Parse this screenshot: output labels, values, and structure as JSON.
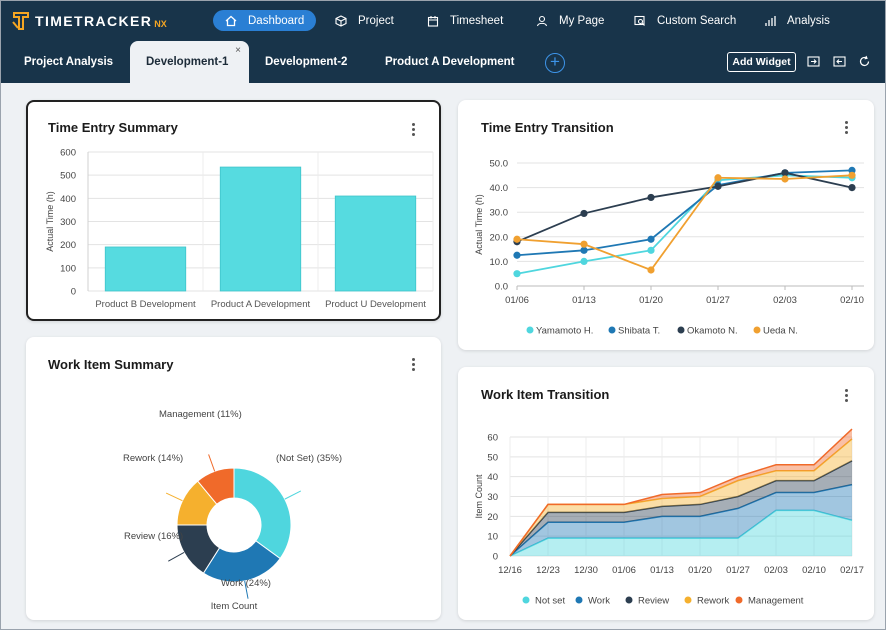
{
  "app": {
    "logo_text": "TIMETRACKER",
    "logo_suffix": "NX"
  },
  "nav": {
    "items": [
      {
        "label": "Dashboard",
        "icon": "home-icon",
        "active": true
      },
      {
        "label": "Project",
        "icon": "cube-icon",
        "active": false
      },
      {
        "label": "Timesheet",
        "icon": "calendar-icon",
        "active": false
      },
      {
        "label": "My Page",
        "icon": "user-icon",
        "active": false
      },
      {
        "label": "Custom Search",
        "icon": "search-list-icon",
        "active": false
      },
      {
        "label": "Analysis",
        "icon": "bar-chart-icon",
        "active": false
      }
    ]
  },
  "tabs": {
    "items": [
      {
        "label": "Project Analysis",
        "active": false
      },
      {
        "label": "Development-1",
        "active": true
      },
      {
        "label": "Development-2",
        "active": false
      },
      {
        "label": "Product A Development",
        "active": false
      }
    ],
    "close_glyph": "×",
    "add_glyph": "+",
    "add_widget_label": "Add Widget"
  },
  "colors": {
    "nav_bg": "#18344a",
    "accent": "#2a7fd4",
    "bar": "#56dbe0",
    "bar_stroke": "#3fc4ca"
  },
  "widgets": {
    "time_entry_summary": {
      "title": "Time Entry Summary"
    },
    "time_entry_transition": {
      "title": "Time Entry Transition"
    },
    "work_item_summary": {
      "title": "Work Item Summary"
    },
    "work_item_transition": {
      "title": "Work Item Transition"
    }
  },
  "chart_data": [
    {
      "type": "bar",
      "title": "Time Entry Summary",
      "ylabel": "Actual Time (h)",
      "categories": [
        "Product B Development",
        "Product A Development",
        "Product U Development"
      ],
      "values": [
        190,
        535,
        410
      ],
      "ylim": [
        0,
        600
      ],
      "yticks": [
        0,
        100,
        200,
        300,
        400,
        500,
        600
      ],
      "grid": true,
      "color": "#56dbe0"
    },
    {
      "type": "line",
      "title": "Time Entry Transition",
      "ylabel": "Actual Time (h)",
      "x": [
        "01/06",
        "01/13",
        "01/20",
        "01/27",
        "02/03",
        "02/10"
      ],
      "ylim": [
        0,
        50
      ],
      "yticks": [
        "0.0",
        "10.0",
        "20.0",
        "30.0",
        "40.0",
        "50.0"
      ],
      "legend": "bottom",
      "series": [
        {
          "name": "Yamamoto H.",
          "color": "#4fd6de",
          "values": [
            5,
            10,
            14.5,
            43,
            45,
            44
          ]
        },
        {
          "name": "Shibata T.",
          "color": "#1f78b4",
          "values": [
            12.5,
            14.5,
            19,
            41,
            46,
            47
          ]
        },
        {
          "name": "Okamoto N.",
          "color": "#2c3e50",
          "values": [
            18,
            29.5,
            36,
            40.5,
            46,
            40
          ]
        },
        {
          "name": "Ueda N.",
          "color": "#f0a030",
          "values": [
            19,
            17,
            6.5,
            44,
            43.5,
            45
          ]
        }
      ]
    },
    {
      "type": "pie",
      "title": "Work Item Summary",
      "legend_title": "Item Count",
      "slices": [
        {
          "label": "(Not Set) (35%)",
          "value": 35,
          "color": "#4fd6de"
        },
        {
          "label": "Work (24%)",
          "value": 24,
          "color": "#1f78b4"
        },
        {
          "label": "Review (16%)",
          "value": 16,
          "color": "#2c3e50"
        },
        {
          "label": "Rework (14%)",
          "value": 14,
          "color": "#f5b02e"
        },
        {
          "label": "Management (11%)",
          "value": 11,
          "color": "#f06a2a"
        }
      ]
    },
    {
      "type": "area",
      "title": "Work Item Transition",
      "ylabel": "Item Count",
      "x": [
        "12/16",
        "12/23",
        "12/30",
        "01/06",
        "01/13",
        "01/20",
        "01/27",
        "02/03",
        "02/10",
        "02/17"
      ],
      "ylim": [
        0,
        60
      ],
      "yticks": [
        0,
        10,
        20,
        30,
        40,
        50,
        60
      ],
      "legend": "bottom",
      "series": [
        {
          "name": "Not set",
          "color": "#4fd6de",
          "values": [
            0,
            9,
            9,
            9,
            9,
            9,
            9,
            23,
            23,
            18
          ]
        },
        {
          "name": "Work",
          "color": "#1f78b4",
          "values": [
            0,
            8,
            8,
            8,
            11,
            11,
            15,
            9,
            9,
            18
          ]
        },
        {
          "name": "Review",
          "color": "#2c3e50",
          "values": [
            0,
            5,
            5,
            5,
            5,
            6,
            6,
            6,
            6,
            12
          ]
        },
        {
          "name": "Rework",
          "color": "#f5b02e",
          "values": [
            0,
            4,
            4,
            4,
            4,
            4,
            8,
            5,
            5,
            11
          ]
        },
        {
          "name": "Management",
          "color": "#f06a2a",
          "values": [
            0,
            0,
            0,
            0,
            2,
            2,
            2,
            3,
            3,
            5
          ]
        }
      ]
    }
  ]
}
